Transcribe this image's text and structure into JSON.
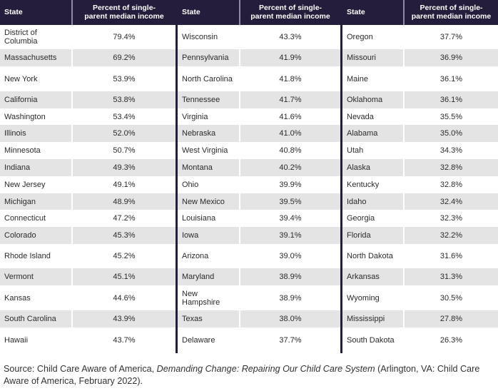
{
  "header": {
    "state_label": "State",
    "percent_label": "Percent of single-\nparent median income"
  },
  "colors": {
    "header_bg": "#241d3b",
    "stripe": "#e4e4e4"
  },
  "groups": [
    [
      {
        "state": "District of Columbia",
        "pct": "79.4%"
      },
      {
        "state": "Massachusetts",
        "pct": "69.2%"
      },
      {
        "state": "New York",
        "pct": "53.9%"
      },
      {
        "state": "California",
        "pct": "53.8%"
      },
      {
        "state": "Washington",
        "pct": "53.4%"
      },
      {
        "state": "Illinois",
        "pct": "52.0%"
      },
      {
        "state": "Minnesota",
        "pct": "50.7%"
      },
      {
        "state": "Indiana",
        "pct": "49.3%"
      },
      {
        "state": "New Jersey",
        "pct": "49.1%"
      },
      {
        "state": "Michigan",
        "pct": "48.9%"
      },
      {
        "state": "Connecticut",
        "pct": "47.2%"
      },
      {
        "state": "Colorado",
        "pct": "45.3%"
      },
      {
        "state": "Rhode Island",
        "pct": "45.2%"
      },
      {
        "state": "Vermont",
        "pct": "45.1%"
      },
      {
        "state": "Kansas",
        "pct": "44.6%"
      },
      {
        "state": "South Carolina",
        "pct": "43.9%"
      },
      {
        "state": "Hawaii",
        "pct": "43.7%"
      }
    ],
    [
      {
        "state": "Wisconsin",
        "pct": "43.3%"
      },
      {
        "state": "Pennsylvania",
        "pct": "41.9%"
      },
      {
        "state": "North Carolina",
        "pct": "41.8%"
      },
      {
        "state": "Tennessee",
        "pct": "41.7%"
      },
      {
        "state": "Virginia",
        "pct": "41.6%"
      },
      {
        "state": "Nebraska",
        "pct": "41.0%"
      },
      {
        "state": "West Virginia",
        "pct": "40.8%"
      },
      {
        "state": "Montana",
        "pct": "40.2%"
      },
      {
        "state": "Ohio",
        "pct": "39.9%"
      },
      {
        "state": "New Mexico",
        "pct": "39.5%"
      },
      {
        "state": "Louisiana",
        "pct": "39.4%"
      },
      {
        "state": "Iowa",
        "pct": "39.1%"
      },
      {
        "state": "Arizona",
        "pct": "39.0%"
      },
      {
        "state": "Maryland",
        "pct": "38.9%"
      },
      {
        "state": "New Hampshire",
        "pct": "38.9%"
      },
      {
        "state": "Texas",
        "pct": "38.0%"
      },
      {
        "state": "Delaware",
        "pct": "37.7%"
      }
    ],
    [
      {
        "state": "Oregon",
        "pct": "37.7%"
      },
      {
        "state": "Missouri",
        "pct": "36.9%"
      },
      {
        "state": "Maine",
        "pct": "36.1%"
      },
      {
        "state": "Oklahoma",
        "pct": "36.1%"
      },
      {
        "state": "Nevada",
        "pct": "35.5%"
      },
      {
        "state": "Alabama",
        "pct": "35.0%"
      },
      {
        "state": "Utah",
        "pct": "34.3%"
      },
      {
        "state": "Alaska",
        "pct": "32.8%"
      },
      {
        "state": "Kentucky",
        "pct": "32.8%"
      },
      {
        "state": "Idaho",
        "pct": "32.4%"
      },
      {
        "state": "Georgia",
        "pct": "32.3%"
      },
      {
        "state": "Florida",
        "pct": "32.2%"
      },
      {
        "state": "North Dakota",
        "pct": "31.6%"
      },
      {
        "state": "Arkansas",
        "pct": "31.3%"
      },
      {
        "state": "Wyoming",
        "pct": "30.5%"
      },
      {
        "state": "Mississippi",
        "pct": "27.8%"
      },
      {
        "state": "South Dakota",
        "pct": "26.3%"
      }
    ]
  ],
  "source": {
    "prefix": "Source: Child Care Aware of America, ",
    "title": "Demanding Change: Repairing Our Child Care System",
    "suffix": " (Arlington, VA: Child Care Aware of America, February 2022)."
  }
}
